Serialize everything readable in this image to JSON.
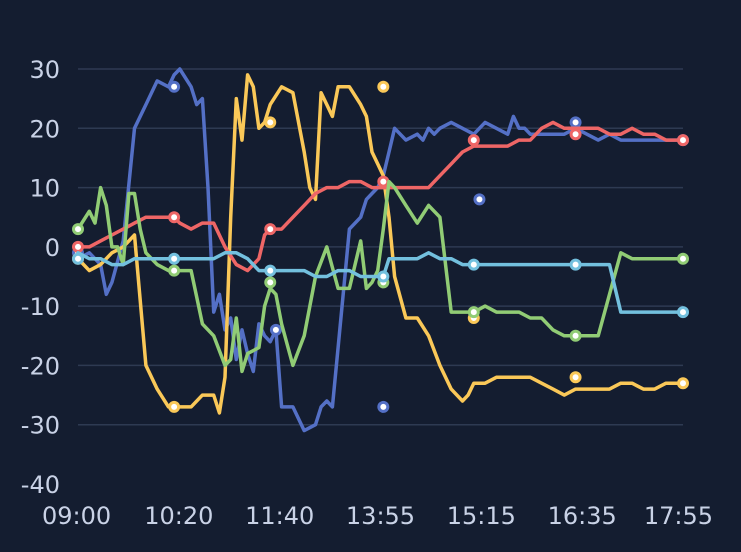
{
  "chart_data": {
    "type": "line",
    "ylim": [
      -40,
      30
    ],
    "y_ticks": [
      30,
      20,
      10,
      0,
      -10,
      -20,
      -30,
      -40
    ],
    "x_ticks": [
      "09:00",
      "10:20",
      "11:40",
      "13:55",
      "15:15",
      "16:35",
      "17:55"
    ],
    "x_range_minutes": [
      0,
      535
    ],
    "grid": true,
    "colors": {
      "background": "#141d30",
      "grid": "#2e3a52",
      "tick_text": "#c9d2e6",
      "blue": "#5470c6",
      "yellow": "#fac858",
      "red": "#ee6666",
      "green": "#91cc75",
      "cyan": "#73c0de"
    },
    "series": [
      {
        "color_key": "blue",
        "x": [
          0,
          10,
          20,
          25,
          30,
          40,
          50,
          60,
          70,
          80,
          85,
          90,
          100,
          105,
          110,
          115,
          120,
          125,
          130,
          135,
          140,
          145,
          150,
          155,
          160,
          165,
          170,
          175,
          180,
          190,
          200,
          210,
          215,
          220,
          225,
          230,
          240,
          250,
          255,
          260,
          265,
          270,
          275,
          280,
          290,
          300,
          305,
          310,
          315,
          320,
          330,
          340,
          350,
          360,
          370,
          380,
          385,
          390,
          395,
          400,
          410,
          420,
          430,
          440,
          450,
          460,
          470,
          480,
          490,
          500,
          510,
          520,
          535
        ],
        "y": [
          -2,
          -1,
          -3,
          -8,
          -6,
          1,
          20,
          24,
          28,
          27,
          29,
          30,
          27,
          24,
          25,
          10,
          -11,
          -8,
          -14,
          -12,
          -19,
          -14,
          -18,
          -21,
          -13,
          -15,
          -16,
          -14,
          -27,
          -27,
          -31,
          -30,
          -27,
          -26,
          -27,
          -17,
          3,
          5,
          8,
          9,
          10,
          12,
          16,
          20,
          18,
          19,
          18,
          20,
          19,
          20,
          21,
          20,
          19,
          21,
          20,
          19,
          22,
          20,
          20,
          19,
          19,
          19,
          19,
          20,
          19,
          18,
          19,
          18,
          18,
          18,
          18,
          18,
          18
        ],
        "markers": [
          [
            0,
            -1
          ],
          [
            85,
            27
          ],
          [
            175,
            -14
          ],
          [
            270,
            -27
          ],
          [
            355,
            8
          ],
          [
            440,
            21
          ],
          [
            535,
            18
          ]
        ]
      },
      {
        "color_key": "yellow",
        "x": [
          0,
          10,
          20,
          30,
          40,
          50,
          60,
          70,
          80,
          90,
          100,
          110,
          120,
          125,
          130,
          135,
          140,
          145,
          150,
          155,
          160,
          165,
          170,
          180,
          190,
          200,
          205,
          210,
          215,
          220,
          225,
          230,
          240,
          250,
          255,
          260,
          265,
          270,
          275,
          280,
          290,
          300,
          310,
          320,
          330,
          340,
          345,
          350,
          360,
          370,
          380,
          390,
          400,
          410,
          420,
          430,
          440,
          450,
          460,
          470,
          480,
          490,
          500,
          510,
          520,
          535
        ],
        "y": [
          -2,
          -4,
          -3,
          -1,
          0,
          2,
          -20,
          -24,
          -27,
          -27,
          -27,
          -25,
          -25,
          -28,
          -22,
          5,
          25,
          18,
          29,
          27,
          20,
          21,
          24,
          27,
          26,
          16,
          10,
          8,
          26,
          24,
          22,
          27,
          27,
          24,
          22,
          16,
          14,
          12,
          5,
          -5,
          -12,
          -12,
          -15,
          -20,
          -24,
          -26,
          -25,
          -23,
          -23,
          -22,
          -22,
          -22,
          -22,
          -23,
          -24,
          -25,
          -24,
          -24,
          -24,
          -24,
          -23,
          -23,
          -24,
          -24,
          -23,
          -23
        ],
        "markers": [
          [
            0,
            -2
          ],
          [
            85,
            -27
          ],
          [
            170,
            21
          ],
          [
            270,
            27
          ],
          [
            350,
            -12
          ],
          [
            440,
            -22
          ],
          [
            535,
            -23
          ]
        ]
      },
      {
        "color_key": "red",
        "x": [
          0,
          10,
          20,
          30,
          40,
          50,
          60,
          70,
          80,
          85,
          90,
          100,
          110,
          120,
          130,
          140,
          150,
          160,
          165,
          170,
          180,
          190,
          200,
          210,
          220,
          230,
          240,
          250,
          260,
          270,
          280,
          290,
          300,
          310,
          320,
          330,
          340,
          350,
          360,
          370,
          380,
          390,
          400,
          410,
          420,
          430,
          440,
          450,
          460,
          470,
          480,
          490,
          500,
          510,
          520,
          535
        ],
        "y": [
          0,
          0,
          1,
          2,
          3,
          4,
          5,
          5,
          5,
          5,
          4,
          3,
          4,
          4,
          0,
          -3,
          -4,
          -2,
          2,
          3,
          3,
          5,
          7,
          9,
          10,
          10,
          11,
          11,
          10,
          10,
          10,
          10,
          10,
          10,
          12,
          14,
          16,
          17,
          17,
          17,
          17,
          18,
          18,
          20,
          21,
          20,
          20,
          20,
          20,
          19,
          19,
          20,
          19,
          19,
          18,
          18
        ],
        "markers": [
          [
            0,
            0
          ],
          [
            85,
            5
          ],
          [
            170,
            3
          ],
          [
            270,
            11
          ],
          [
            350,
            18
          ],
          [
            440,
            19
          ],
          [
            535,
            18
          ]
        ]
      },
      {
        "color_key": "green",
        "x": [
          0,
          10,
          15,
          20,
          25,
          30,
          35,
          40,
          45,
          50,
          55,
          60,
          70,
          80,
          90,
          100,
          110,
          120,
          130,
          135,
          140,
          145,
          150,
          160,
          165,
          170,
          175,
          180,
          190,
          200,
          210,
          220,
          230,
          240,
          250,
          255,
          260,
          265,
          270,
          275,
          280,
          290,
          300,
          310,
          320,
          330,
          340,
          350,
          360,
          370,
          380,
          390,
          400,
          410,
          420,
          430,
          440,
          450,
          460,
          470,
          480,
          490,
          500,
          510,
          520,
          535
        ],
        "y": [
          3,
          6,
          4,
          10,
          7,
          0,
          0,
          -3,
          9,
          9,
          3,
          -1,
          -3,
          -4,
          -4,
          -4,
          -13,
          -15,
          -20,
          -19,
          -12,
          -21,
          -18,
          -17,
          -10,
          -7,
          -8,
          -13,
          -20,
          -15,
          -5,
          0,
          -7,
          -7,
          1,
          -7,
          -6,
          -4,
          3,
          11,
          10,
          7,
          4,
          7,
          5,
          -11,
          -11,
          -11,
          -10,
          -11,
          -11,
          -11,
          -12,
          -12,
          -14,
          -15,
          -15,
          -15,
          -15,
          -8,
          -1,
          -2,
          -2,
          -2,
          -2,
          -2
        ],
        "markers": [
          [
            0,
            3
          ],
          [
            85,
            -4
          ],
          [
            170,
            -6
          ],
          [
            270,
            -6
          ],
          [
            350,
            -11
          ],
          [
            440,
            -15
          ],
          [
            535,
            -2
          ]
        ]
      },
      {
        "color_key": "cyan",
        "x": [
          0,
          10,
          20,
          30,
          40,
          50,
          60,
          70,
          80,
          90,
          100,
          110,
          120,
          130,
          140,
          150,
          160,
          170,
          180,
          190,
          200,
          210,
          220,
          230,
          240,
          250,
          260,
          270,
          275,
          280,
          290,
          300,
          310,
          320,
          330,
          340,
          350,
          360,
          370,
          380,
          390,
          400,
          410,
          420,
          430,
          440,
          450,
          460,
          470,
          480,
          490,
          500,
          510,
          520,
          535
        ],
        "y": [
          -1,
          -2,
          -2,
          -3,
          -3,
          -2,
          -2,
          -2,
          -2,
          -2,
          -2,
          -2,
          -2,
          -1,
          -1,
          -2,
          -4,
          -4,
          -4,
          -4,
          -4,
          -5,
          -5,
          -4,
          -4,
          -5,
          -5,
          -5,
          -2,
          -2,
          -2,
          -2,
          -1,
          -2,
          -2,
          -3,
          -3,
          -3,
          -3,
          -3,
          -3,
          -3,
          -3,
          -3,
          -3,
          -3,
          -3,
          -3,
          -3,
          -11,
          -11,
          -11,
          -11,
          -11,
          -11
        ],
        "markers": [
          [
            0,
            -2
          ],
          [
            85,
            -2
          ],
          [
            170,
            -4
          ],
          [
            270,
            -5
          ],
          [
            350,
            -3
          ],
          [
            440,
            -3
          ],
          [
            535,
            -11
          ]
        ]
      }
    ]
  }
}
